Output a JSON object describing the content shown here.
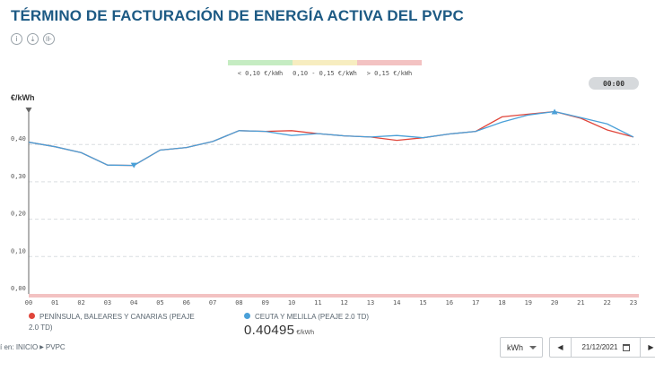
{
  "page": {
    "title": "TÉRMINO DE FACTURACIÓN DE ENERGÍA ACTIVA DEL PVPC",
    "icons": [
      "info-icon",
      "download-icon",
      "chart-icon"
    ]
  },
  "price_legend": [
    {
      "label": "< 0,10 €/kWh",
      "color": "#c5ecc2"
    },
    {
      "label": "0,10 - 0,15 €/kWh",
      "color": "#f7edc0"
    },
    {
      "label": "> 0,15 €/kWh",
      "color": "#f3c2c2"
    }
  ],
  "time_display": "00:00",
  "chart_data": {
    "type": "line",
    "ylabel": "€/kWh",
    "ylim": [
      0,
      0.5
    ],
    "yticks": [
      "0,00",
      "0,10",
      "0,20",
      "0,30",
      "0,40"
    ],
    "yticks_values": [
      0,
      0.1,
      0.2,
      0.3,
      0.4
    ],
    "categories": [
      "00",
      "01",
      "02",
      "03",
      "04",
      "05",
      "06",
      "07",
      "08",
      "09",
      "10",
      "11",
      "12",
      "13",
      "14",
      "15",
      "16",
      "17",
      "18",
      "19",
      "20",
      "21",
      "22",
      "23"
    ],
    "series": [
      {
        "name": "PENÍNSULA, BALEARES Y CANARIAS (PEAJE 2.0 TD)",
        "color": "#e0453a",
        "values": [
          0.406,
          0.394,
          0.378,
          0.345,
          0.344,
          0.385,
          0.392,
          0.408,
          0.437,
          0.435,
          0.437,
          0.429,
          0.423,
          0.42,
          0.411,
          0.418,
          0.428,
          0.435,
          0.474,
          0.481,
          0.488,
          0.47,
          0.439,
          0.42
        ]
      },
      {
        "name": "CEUTA Y MELILLA (PEAJE 2.0 TD)",
        "color": "#4aa0d8",
        "values": [
          0.406,
          0.394,
          0.378,
          0.345,
          0.344,
          0.385,
          0.392,
          0.408,
          0.437,
          0.435,
          0.424,
          0.429,
          0.423,
          0.42,
          0.424,
          0.418,
          0.428,
          0.435,
          0.46,
          0.479,
          0.488,
          0.472,
          0.455,
          0.42
        ]
      }
    ],
    "markers": {
      "min_index": 4,
      "max_index": 20
    }
  },
  "legend": {
    "series1_line1": "PENÍNSULA, BALEARES Y CANARIAS (PEAJE",
    "series1_line2": "2.0 TD)",
    "series2": "CEUTA Y MELILLA (PEAJE 2.0 TD)"
  },
  "current_value": {
    "value": "0.40495",
    "unit": "€/kWh"
  },
  "breadcrumb": {
    "prefix": "í en:",
    "home": "INICIO",
    "current": "PVPC"
  },
  "controls": {
    "unit": "kWh",
    "date": "21/12/2021"
  }
}
